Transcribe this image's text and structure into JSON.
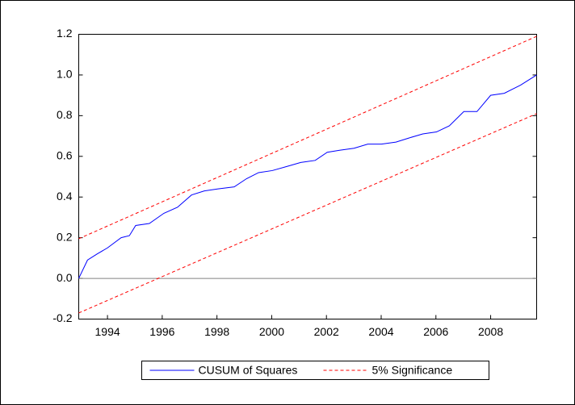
{
  "chart_data": {
    "type": "line",
    "series": [
      {
        "name": "CUSUM of Squares",
        "color": "#0000ff",
        "dashed": false,
        "x": [
          1992.95,
          1993.27,
          1993.62,
          1994.0,
          1994.5,
          1994.8,
          1995.03,
          1995.53,
          1996.06,
          1996.56,
          1997.07,
          1997.54,
          1998.04,
          1998.63,
          1999.08,
          1999.52,
          2000.02,
          2000.55,
          2001.06,
          2001.59,
          2002.03,
          2002.48,
          2003.01,
          2003.51,
          2004.01,
          2004.54,
          2005.01,
          2005.52,
          2006.02,
          2006.49,
          2007.02,
          2007.5,
          2008.0,
          2008.5,
          2009.09,
          2009.68
        ],
        "values": [
          0.0,
          0.09,
          0.12,
          0.15,
          0.2,
          0.21,
          0.26,
          0.27,
          0.32,
          0.35,
          0.41,
          0.43,
          0.44,
          0.45,
          0.49,
          0.52,
          0.53,
          0.55,
          0.57,
          0.58,
          0.62,
          0.63,
          0.64,
          0.66,
          0.66,
          0.67,
          0.69,
          0.71,
          0.72,
          0.75,
          0.82,
          0.82,
          0.9,
          0.91,
          0.95,
          1.0
        ]
      },
      {
        "name": "5% Significance",
        "color": "#ff0000",
        "dashed": true,
        "x": [
          1992.95,
          2009.68
        ],
        "values": [
          0.195,
          1.19
        ]
      },
      {
        "color": "#ff0000",
        "dashed": true,
        "x": [
          1992.95,
          2009.68
        ],
        "values": [
          -0.17,
          0.81
        ]
      }
    ],
    "xlim": [
      1992.95,
      2009.68
    ],
    "xticks": [
      1994,
      1996,
      1998,
      2000,
      2002,
      2004,
      2006,
      2008
    ],
    "ylim": [
      -0.2,
      1.2
    ],
    "yticks": [
      -0.2,
      {
        "value": 0,
        "label": "0.0"
      },
      0.2,
      0.4,
      0.6,
      0.8,
      {
        "value": 1,
        "label": "1.0"
      },
      1.2
    ],
    "hline": 0,
    "grid": false
  }
}
